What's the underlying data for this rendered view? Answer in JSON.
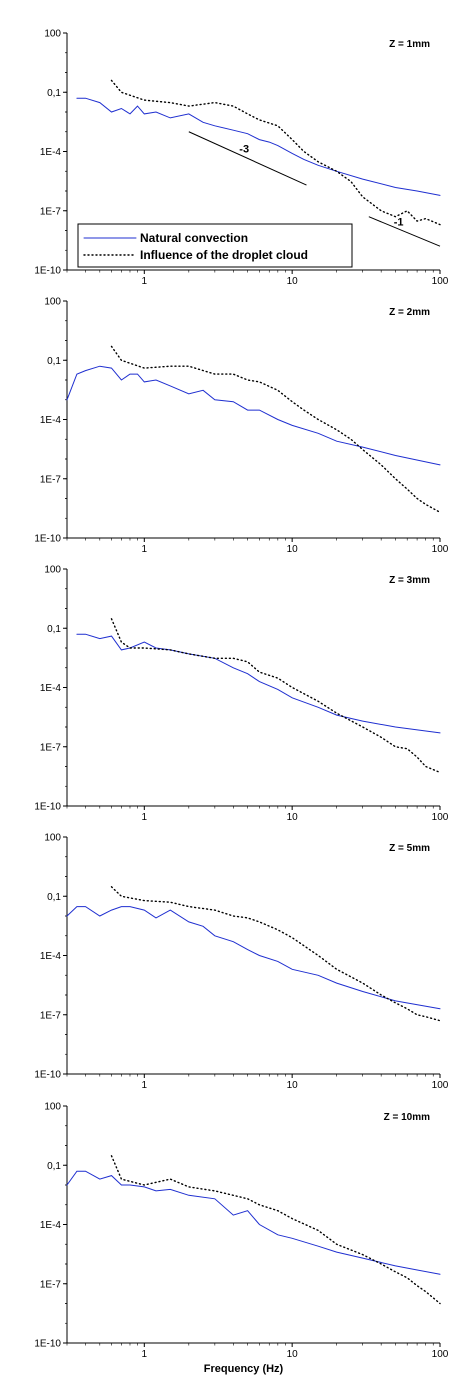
{
  "colors": {
    "natural": "#1f2fd0",
    "droplet": "#000000"
  },
  "chart_data": [
    {
      "type": "line",
      "panel_label": "Z = 1mm",
      "xscale": "log",
      "yscale": "log",
      "xlim": [
        0.3,
        100
      ],
      "ylim": [
        1e-10,
        100
      ],
      "xticks": [
        "1",
        "10",
        "100"
      ],
      "yticks": [
        "100",
        "0,1",
        "1E-4",
        "1E-7",
        "1E-10"
      ],
      "xlabel": "",
      "legend": {
        "position": "bottom-left",
        "entries": [
          "Natural convection",
          "Influence of the droplet cloud"
        ]
      },
      "annotations": [
        {
          "text": "-3",
          "x": [
            2,
            12.5
          ],
          "y": [
            0.001,
            2e-06
          ]
        },
        {
          "text": "-1",
          "x": [
            33,
            100
          ],
          "y": [
            5e-08,
            1.6e-09
          ]
        }
      ],
      "series": [
        {
          "name": "Natural convection",
          "style": "solid",
          "x": [
            0.35,
            0.4,
            0.5,
            0.6,
            0.7,
            0.8,
            0.9,
            1.0,
            1.2,
            1.5,
            2,
            2.5,
            3,
            4,
            5,
            6,
            7,
            8,
            10,
            12,
            15,
            20,
            30,
            50,
            70,
            100
          ],
          "y": [
            0.05,
            0.05,
            0.03,
            0.01,
            0.015,
            0.008,
            0.02,
            0.008,
            0.01,
            0.005,
            0.008,
            0.003,
            0.002,
            0.0012,
            0.0008,
            0.0004,
            0.0003,
            0.0002,
            8e-05,
            4e-05,
            2e-05,
            1e-05,
            4e-06,
            1.5e-06,
            1e-06,
            6e-07
          ]
        },
        {
          "name": "Influence of the droplet cloud",
          "style": "dotted",
          "x": [
            0.6,
            0.7,
            1.0,
            1.5,
            2,
            3,
            4,
            5,
            6,
            8,
            10,
            12,
            15,
            20,
            25,
            30,
            40,
            50,
            60,
            70,
            80,
            100
          ],
          "y": [
            0.4,
            0.1,
            0.04,
            0.03,
            0.02,
            0.03,
            0.02,
            0.008,
            0.004,
            0.002,
            0.0004,
            0.0001,
            3e-05,
            1e-05,
            3e-06,
            5e-07,
            1e-07,
            5e-08,
            1e-07,
            3e-08,
            4e-08,
            2e-08
          ]
        }
      ]
    },
    {
      "type": "line",
      "panel_label": "Z = 2mm",
      "xscale": "log",
      "yscale": "log",
      "xlim": [
        0.3,
        100
      ],
      "ylim": [
        1e-10,
        100
      ],
      "xticks": [
        "1",
        "10",
        "100"
      ],
      "yticks": [
        "100",
        "0,1",
        "1E-4",
        "1E-7",
        "1E-10"
      ],
      "xlabel": "",
      "series": [
        {
          "name": "Natural convection",
          "style": "solid",
          "x": [
            0.3,
            0.35,
            0.4,
            0.5,
            0.6,
            0.7,
            0.8,
            0.9,
            1.0,
            1.2,
            1.5,
            2,
            2.5,
            3,
            4,
            5,
            6,
            8,
            10,
            15,
            20,
            30,
            50,
            100
          ],
          "y": [
            0.001,
            0.02,
            0.03,
            0.05,
            0.04,
            0.01,
            0.02,
            0.02,
            0.008,
            0.01,
            0.005,
            0.002,
            0.003,
            0.001,
            0.0008,
            0.0003,
            0.0003,
            0.0001,
            5e-05,
            2e-05,
            8e-06,
            4e-06,
            1.5e-06,
            5e-07
          ]
        },
        {
          "name": "Influence of the droplet cloud",
          "style": "dotted",
          "x": [
            0.6,
            0.7,
            1.0,
            1.5,
            2,
            3,
            4,
            5,
            6,
            8,
            10,
            12,
            15,
            20,
            25,
            30,
            40,
            50,
            60,
            70,
            80,
            100
          ],
          "y": [
            0.5,
            0.1,
            0.04,
            0.05,
            0.05,
            0.02,
            0.02,
            0.01,
            0.008,
            0.003,
            0.0008,
            0.0003,
            0.0001,
            3e-05,
            1e-05,
            3e-06,
            5e-07,
            1e-07,
            3e-08,
            1e-08,
            5e-09,
            2e-09
          ]
        }
      ]
    },
    {
      "type": "line",
      "panel_label": "Z = 3mm",
      "xscale": "log",
      "yscale": "log",
      "xlim": [
        0.3,
        100
      ],
      "ylim": [
        1e-10,
        100
      ],
      "xticks": [
        "1",
        "10",
        "100"
      ],
      "yticks": [
        "100",
        "0,1",
        "1E-4",
        "1E-7",
        "1E-10"
      ],
      "xlabel": "",
      "series": [
        {
          "name": "Natural convection",
          "style": "solid",
          "x": [
            0.35,
            0.4,
            0.5,
            0.6,
            0.7,
            0.8,
            1.0,
            1.2,
            1.5,
            2,
            3,
            4,
            5,
            6,
            8,
            10,
            15,
            20,
            30,
            50,
            100
          ],
          "y": [
            0.05,
            0.05,
            0.03,
            0.04,
            0.008,
            0.01,
            0.02,
            0.01,
            0.008,
            0.005,
            0.003,
            0.001,
            0.0005,
            0.0002,
            8e-05,
            3e-05,
            1e-05,
            4e-06,
            2e-06,
            1e-06,
            5e-07
          ]
        },
        {
          "name": "Influence of the droplet cloud",
          "style": "dotted",
          "x": [
            0.6,
            0.7,
            0.8,
            1.0,
            1.5,
            2,
            3,
            4,
            5,
            6,
            8,
            10,
            15,
            20,
            30,
            40,
            50,
            60,
            70,
            80,
            100
          ],
          "y": [
            0.3,
            0.02,
            0.01,
            0.01,
            0.008,
            0.005,
            0.003,
            0.003,
            0.002,
            0.0006,
            0.0003,
            0.0001,
            2e-05,
            5e-06,
            1e-06,
            3e-07,
            1e-07,
            8e-08,
            3e-08,
            1e-08,
            5e-09
          ]
        }
      ]
    },
    {
      "type": "line",
      "panel_label": "Z = 5mm",
      "xscale": "log",
      "yscale": "log",
      "xlim": [
        0.3,
        100
      ],
      "ylim": [
        1e-10,
        100
      ],
      "xticks": [
        "1",
        "10",
        "100"
      ],
      "yticks": [
        "100",
        "0,1",
        "1E-4",
        "1E-7",
        "1E-10"
      ],
      "xlabel": "",
      "series": [
        {
          "name": "Natural convection",
          "style": "solid",
          "x": [
            0.3,
            0.35,
            0.4,
            0.5,
            0.6,
            0.7,
            0.8,
            1.0,
            1.2,
            1.5,
            2,
            2.5,
            3,
            4,
            5,
            6,
            8,
            10,
            15,
            20,
            30,
            50,
            100
          ],
          "y": [
            0.01,
            0.03,
            0.03,
            0.01,
            0.02,
            0.03,
            0.03,
            0.02,
            0.008,
            0.02,
            0.005,
            0.003,
            0.001,
            0.0005,
            0.0002,
            0.0001,
            5e-05,
            2e-05,
            1e-05,
            4e-06,
            1.5e-06,
            5e-07,
            2e-07
          ]
        },
        {
          "name": "Influence of the droplet cloud",
          "style": "dotted",
          "x": [
            0.6,
            0.7,
            1.0,
            1.5,
            2,
            3,
            4,
            5,
            6,
            8,
            10,
            15,
            20,
            30,
            40,
            50,
            60,
            70,
            80,
            100
          ],
          "y": [
            0.3,
            0.1,
            0.06,
            0.05,
            0.03,
            0.02,
            0.01,
            0.008,
            0.005,
            0.002,
            0.0008,
            0.0001,
            2e-05,
            4e-06,
            1e-06,
            4e-07,
            2e-07,
            1e-07,
            8e-08,
            5e-08
          ]
        }
      ]
    },
    {
      "type": "line",
      "panel_label": "Z = 10mm",
      "xscale": "log",
      "yscale": "log",
      "xlim": [
        0.3,
        100
      ],
      "ylim": [
        1e-10,
        100
      ],
      "xticks": [
        "1",
        "10",
        "100"
      ],
      "yticks": [
        "100",
        "0,1",
        "1E-4",
        "1E-7",
        "1E-10"
      ],
      "xlabel": "Frequency (Hz)",
      "series": [
        {
          "name": "Natural convection",
          "style": "solid",
          "x": [
            0.3,
            0.35,
            0.4,
            0.5,
            0.6,
            0.7,
            0.8,
            1.0,
            1.2,
            1.5,
            2,
            3,
            4,
            5,
            6,
            8,
            10,
            15,
            20,
            30,
            50,
            100
          ],
          "y": [
            0.01,
            0.05,
            0.05,
            0.02,
            0.03,
            0.01,
            0.01,
            0.008,
            0.005,
            0.006,
            0.003,
            0.002,
            0.0003,
            0.0005,
            0.0001,
            3e-05,
            2e-05,
            8e-06,
            4e-06,
            2e-06,
            8e-07,
            3e-07
          ]
        },
        {
          "name": "Influence of the droplet cloud",
          "style": "dotted",
          "x": [
            0.6,
            0.7,
            1.0,
            1.5,
            2,
            3,
            4,
            5,
            6,
            8,
            10,
            15,
            20,
            30,
            40,
            50,
            60,
            70,
            80,
            100
          ],
          "y": [
            0.3,
            0.02,
            0.01,
            0.02,
            0.008,
            0.005,
            0.003,
            0.002,
            0.001,
            0.0005,
            0.0002,
            5e-05,
            1e-05,
            3e-06,
            1e-06,
            4e-07,
            2e-07,
            8e-08,
            4e-08,
            1e-08
          ]
        }
      ]
    }
  ]
}
